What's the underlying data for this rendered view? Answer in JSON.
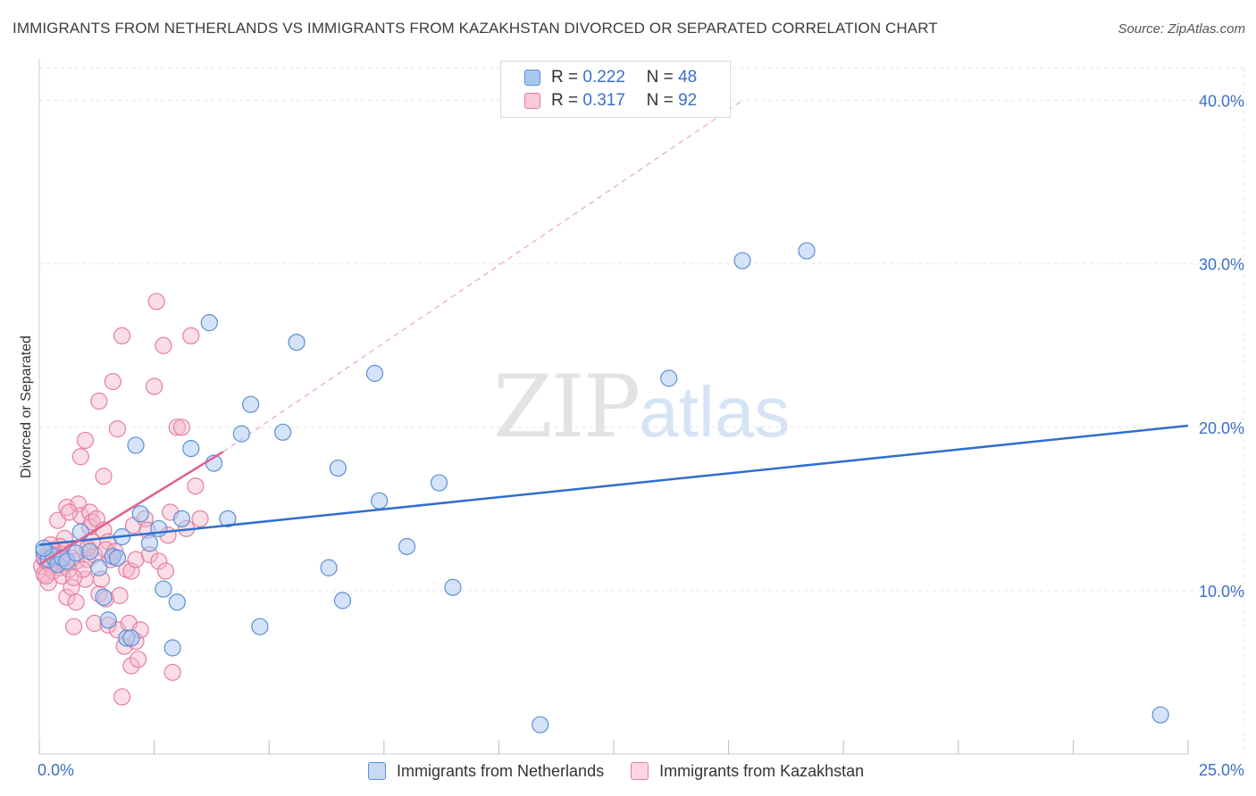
{
  "header": {
    "title": "IMMIGRANTS FROM NETHERLANDS VS IMMIGRANTS FROM KAZAKHSTAN DIVORCED OR SEPARATED CORRELATION CHART",
    "source": "Source: ZipAtlas.com"
  },
  "watermark": {
    "zip": "ZIP",
    "atlas": "atlas"
  },
  "legend": {
    "series1": {
      "r_label": "R =",
      "r_value": "0.222",
      "n_label": "N =",
      "n_value": "48"
    },
    "series2": {
      "r_label": "R =",
      "r_value": "0.317",
      "n_label": "N =",
      "n_value": "92"
    }
  },
  "colors": {
    "blue_fill": "#a9c8f0",
    "blue_stroke": "#5b8fd8",
    "blue_line": "#2f6fd0",
    "pink_fill": "#f5b5c9",
    "pink_stroke": "#e67ea0",
    "pink_line": "#e0618e",
    "grid": "#e5e5e5",
    "axis_text": "#3a6fc9"
  },
  "chart_data": {
    "type": "scatter",
    "title": "IMMIGRANTS FROM NETHERLANDS VS IMMIGRANTS FROM KAZAKHSTAN DIVORCED OR SEPARATED CORRELATION CHART",
    "xlabel": "",
    "ylabel": "Divorced or Separated",
    "xlim": [
      0,
      25
    ],
    "ylim": [
      0,
      42
    ],
    "x_tick_labels": [
      "0.0%",
      "25.0%"
    ],
    "y_ticks": [
      10,
      20,
      30,
      40
    ],
    "y_tick_labels": [
      "10.0%",
      "20.0%",
      "30.0%",
      "40.0%"
    ],
    "legend_position": "top-center",
    "series": [
      {
        "name": "Immigrants from Netherlands",
        "color": "#5b8fd8",
        "trend": {
          "x": [
            0,
            25
          ],
          "y": [
            12.8,
            20.1
          ],
          "style": "solid"
        },
        "points": [
          [
            0.1,
            12.4
          ],
          [
            0.2,
            11.9
          ],
          [
            0.3,
            12.1
          ],
          [
            0.4,
            11.6
          ],
          [
            0.5,
            12.0
          ],
          [
            0.6,
            11.8
          ],
          [
            0.8,
            12.3
          ],
          [
            0.9,
            13.6
          ],
          [
            1.1,
            12.4
          ],
          [
            1.3,
            11.4
          ],
          [
            1.4,
            9.6
          ],
          [
            1.5,
            8.2
          ],
          [
            1.6,
            12.1
          ],
          [
            1.7,
            12.0
          ],
          [
            1.8,
            13.3
          ],
          [
            1.9,
            7.1
          ],
          [
            2.0,
            7.1
          ],
          [
            2.1,
            18.9
          ],
          [
            2.2,
            14.7
          ],
          [
            2.4,
            12.9
          ],
          [
            2.6,
            13.8
          ],
          [
            2.7,
            10.1
          ],
          [
            2.9,
            6.5
          ],
          [
            3.0,
            9.3
          ],
          [
            3.1,
            14.4
          ],
          [
            3.3,
            18.7
          ],
          [
            3.7,
            26.4
          ],
          [
            3.8,
            17.8
          ],
          [
            4.1,
            14.4
          ],
          [
            4.4,
            19.6
          ],
          [
            4.6,
            21.4
          ],
          [
            4.8,
            7.8
          ],
          [
            5.3,
            19.7
          ],
          [
            5.6,
            25.2
          ],
          [
            6.3,
            11.4
          ],
          [
            6.5,
            17.5
          ],
          [
            6.6,
            9.4
          ],
          [
            7.3,
            23.3
          ],
          [
            7.4,
            15.5
          ],
          [
            8.0,
            12.7
          ],
          [
            8.7,
            16.6
          ],
          [
            9.0,
            10.2
          ],
          [
            10.9,
            1.8
          ],
          [
            13.7,
            23.0
          ],
          [
            15.3,
            30.2
          ],
          [
            16.7,
            30.8
          ],
          [
            24.4,
            2.4
          ],
          [
            0.1,
            12.6
          ]
        ]
      },
      {
        "name": "Immigrants from Kazakhstan",
        "color": "#e67ea0",
        "trend": {
          "x": [
            0,
            4.0
          ],
          "y": [
            11.6,
            18.5
          ],
          "style": "solid",
          "extended_to": [
            15.3,
            40.0
          ],
          "extended_style": "dashed"
        },
        "points": [
          [
            0.05,
            11.5
          ],
          [
            0.1,
            11.0
          ],
          [
            0.1,
            12.0
          ],
          [
            0.15,
            11.8
          ],
          [
            0.2,
            10.5
          ],
          [
            0.2,
            12.3
          ],
          [
            0.25,
            11.6
          ],
          [
            0.3,
            11.2
          ],
          [
            0.3,
            12.5
          ],
          [
            0.35,
            11.9
          ],
          [
            0.4,
            12.1
          ],
          [
            0.4,
            14.3
          ],
          [
            0.45,
            11.4
          ],
          [
            0.5,
            10.9
          ],
          [
            0.5,
            12.2
          ],
          [
            0.55,
            11.7
          ],
          [
            0.6,
            9.6
          ],
          [
            0.6,
            15.1
          ],
          [
            0.65,
            11.3
          ],
          [
            0.7,
            10.2
          ],
          [
            0.7,
            12.0
          ],
          [
            0.75,
            7.8
          ],
          [
            0.8,
            9.3
          ],
          [
            0.8,
            11.8
          ],
          [
            0.85,
            15.3
          ],
          [
            0.9,
            14.6
          ],
          [
            0.9,
            18.2
          ],
          [
            0.95,
            12.6
          ],
          [
            1.0,
            19.2
          ],
          [
            1.0,
            10.7
          ],
          [
            1.05,
            11.9
          ],
          [
            1.1,
            13.9
          ],
          [
            1.1,
            14.8
          ],
          [
            1.15,
            14.2
          ],
          [
            1.2,
            8.0
          ],
          [
            1.2,
            12.2
          ],
          [
            1.25,
            14.4
          ],
          [
            1.3,
            21.6
          ],
          [
            1.3,
            9.8
          ],
          [
            1.35,
            10.7
          ],
          [
            1.4,
            13.7
          ],
          [
            1.4,
            17.0
          ],
          [
            1.45,
            9.5
          ],
          [
            1.5,
            7.9
          ],
          [
            1.5,
            13.0
          ],
          [
            1.55,
            11.9
          ],
          [
            1.6,
            22.8
          ],
          [
            1.6,
            12.1
          ],
          [
            1.7,
            19.9
          ],
          [
            1.7,
            7.6
          ],
          [
            1.75,
            9.7
          ],
          [
            1.8,
            25.6
          ],
          [
            1.8,
            3.5
          ],
          [
            1.85,
            6.6
          ],
          [
            1.9,
            11.3
          ],
          [
            1.95,
            8.0
          ],
          [
            2.0,
            11.2
          ],
          [
            2.0,
            5.4
          ],
          [
            2.05,
            14.0
          ],
          [
            2.1,
            11.9
          ],
          [
            2.1,
            6.9
          ],
          [
            2.15,
            5.8
          ],
          [
            2.2,
            7.6
          ],
          [
            2.3,
            14.4
          ],
          [
            2.35,
            13.7
          ],
          [
            2.4,
            12.2
          ],
          [
            2.5,
            22.5
          ],
          [
            2.55,
            27.7
          ],
          [
            2.6,
            11.8
          ],
          [
            2.7,
            25.0
          ],
          [
            2.75,
            11.2
          ],
          [
            2.8,
            13.4
          ],
          [
            2.85,
            14.8
          ],
          [
            2.9,
            5.0
          ],
          [
            3.0,
            20.0
          ],
          [
            3.1,
            20.0
          ],
          [
            3.2,
            13.8
          ],
          [
            3.3,
            25.6
          ],
          [
            3.4,
            16.4
          ],
          [
            3.5,
            14.4
          ],
          [
            0.55,
            13.2
          ],
          [
            0.65,
            14.8
          ],
          [
            0.95,
            11.3
          ],
          [
            1.15,
            13.0
          ],
          [
            1.45,
            12.5
          ],
          [
            1.65,
            12.4
          ],
          [
            0.45,
            12.7
          ],
          [
            0.25,
            12.8
          ],
          [
            0.15,
            10.9
          ],
          [
            0.35,
            12.2
          ],
          [
            0.75,
            10.8
          ],
          [
            1.05,
            12.6
          ]
        ]
      }
    ]
  },
  "bottom_legend": {
    "item1": "Immigrants from Netherlands",
    "item2": "Immigrants from Kazakhstan"
  }
}
